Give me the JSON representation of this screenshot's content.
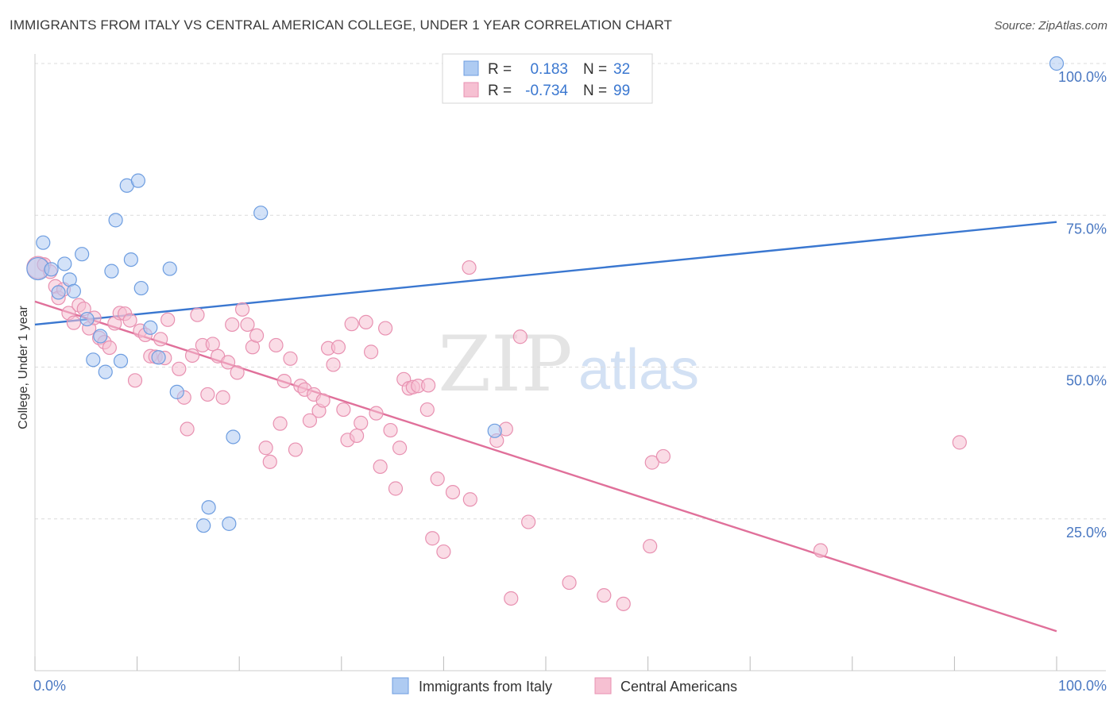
{
  "title": "IMMIGRANTS FROM ITALY VS CENTRAL AMERICAN COLLEGE, UNDER 1 YEAR CORRELATION CHART",
  "source": "Source: ZipAtlas.com",
  "watermark": {
    "zip": "ZIP",
    "atlas": "atlas"
  },
  "colors": {
    "blue_fill": "#aecbf2",
    "blue_stroke": "#6d9de0",
    "blue_line": "#3a77d0",
    "pink_fill": "#f6c0d2",
    "pink_stroke": "#e891b1",
    "pink_line": "#e0709a",
    "tick_text": "#4a78c2",
    "grid": "#dcdcdc"
  },
  "legend": {
    "rows": [
      {
        "r_label": "R =",
        "r_value": "0.183",
        "n_label": "N =",
        "n_value": "32"
      },
      {
        "r_label": "R =",
        "r_value": "-0.734",
        "n_label": "N =",
        "n_value": "99"
      }
    ]
  },
  "chart_data": {
    "type": "scatter",
    "title": "IMMIGRANTS FROM ITALY VS CENTRAL AMERICAN COLLEGE, UNDER 1 YEAR CORRELATION CHART",
    "xlabel": "",
    "ylabel": "College, Under 1 year",
    "xlim": [
      0,
      100
    ],
    "ylim": [
      0,
      102
    ],
    "x_tick_labels": [
      "0.0%",
      "100.0%"
    ],
    "y_tick_values": [
      25,
      50,
      75,
      100
    ],
    "y_tick_labels": [
      "25.0%",
      "50.0%",
      "75.0%",
      "100.0%"
    ],
    "grid": true,
    "legend_position": "bottom-center",
    "series": [
      {
        "name": "Immigrants from Italy",
        "color": "#aecbf2",
        "trend": {
          "x": [
            0,
            100
          ],
          "y": [
            57.0,
            73.9
          ]
        },
        "points": [
          {
            "x": 0.3,
            "y": 66.2,
            "r": 14
          },
          {
            "x": 0.8,
            "y": 70.5
          },
          {
            "x": 1.6,
            "y": 66.1
          },
          {
            "x": 2.3,
            "y": 62.3
          },
          {
            "x": 2.9,
            "y": 67.0
          },
          {
            "x": 3.4,
            "y": 64.4
          },
          {
            "x": 3.8,
            "y": 62.5
          },
          {
            "x": 4.6,
            "y": 68.6
          },
          {
            "x": 5.1,
            "y": 57.9
          },
          {
            "x": 5.7,
            "y": 51.2
          },
          {
            "x": 6.4,
            "y": 55.1
          },
          {
            "x": 6.9,
            "y": 49.2
          },
          {
            "x": 7.5,
            "y": 65.8
          },
          {
            "x": 7.9,
            "y": 74.2
          },
          {
            "x": 8.4,
            "y": 51.0
          },
          {
            "x": 9.0,
            "y": 79.9
          },
          {
            "x": 9.4,
            "y": 67.7
          },
          {
            "x": 10.1,
            "y": 80.7
          },
          {
            "x": 10.4,
            "y": 63.0
          },
          {
            "x": 11.3,
            "y": 56.5
          },
          {
            "x": 12.1,
            "y": 51.6
          },
          {
            "x": 13.2,
            "y": 66.2
          },
          {
            "x": 13.9,
            "y": 45.9
          },
          {
            "x": 16.5,
            "y": 23.9
          },
          {
            "x": 17.0,
            "y": 26.9
          },
          {
            "x": 19.0,
            "y": 24.2
          },
          {
            "x": 19.4,
            "y": 38.5
          },
          {
            "x": 22.1,
            "y": 75.4
          },
          {
            "x": 45.0,
            "y": 39.5
          },
          {
            "x": 100.0,
            "y": 100.0
          }
        ]
      },
      {
        "name": "Central Americans",
        "color": "#f6c0d2",
        "trend": {
          "x": [
            0,
            100
          ],
          "y": [
            60.8,
            6.5
          ]
        },
        "points": [
          {
            "x": 0.3,
            "y": 66.4,
            "r": 14
          },
          {
            "x": 0.9,
            "y": 66.9
          },
          {
            "x": 1.5,
            "y": 65.7
          },
          {
            "x": 2.0,
            "y": 63.3
          },
          {
            "x": 2.3,
            "y": 61.4
          },
          {
            "x": 2.8,
            "y": 62.8
          },
          {
            "x": 3.3,
            "y": 58.9
          },
          {
            "x": 3.8,
            "y": 57.3
          },
          {
            "x": 4.3,
            "y": 60.2
          },
          {
            "x": 4.8,
            "y": 59.6
          },
          {
            "x": 5.3,
            "y": 56.4
          },
          {
            "x": 5.8,
            "y": 58.1
          },
          {
            "x": 6.3,
            "y": 54.8
          },
          {
            "x": 6.8,
            "y": 54.1
          },
          {
            "x": 7.3,
            "y": 53.2
          },
          {
            "x": 7.8,
            "y": 57.2
          },
          {
            "x": 8.3,
            "y": 58.9
          },
          {
            "x": 8.8,
            "y": 58.8
          },
          {
            "x": 9.3,
            "y": 57.7
          },
          {
            "x": 9.8,
            "y": 47.8
          },
          {
            "x": 10.3,
            "y": 56.0
          },
          {
            "x": 10.8,
            "y": 55.3
          },
          {
            "x": 11.3,
            "y": 51.8
          },
          {
            "x": 11.8,
            "y": 51.7
          },
          {
            "x": 12.3,
            "y": 54.6
          },
          {
            "x": 12.7,
            "y": 51.5
          },
          {
            "x": 13.0,
            "y": 57.8
          },
          {
            "x": 14.1,
            "y": 49.7
          },
          {
            "x": 14.6,
            "y": 45.0
          },
          {
            "x": 14.9,
            "y": 39.8
          },
          {
            "x": 15.4,
            "y": 51.9
          },
          {
            "x": 15.9,
            "y": 58.6
          },
          {
            "x": 16.4,
            "y": 53.6
          },
          {
            "x": 16.9,
            "y": 45.5
          },
          {
            "x": 17.4,
            "y": 53.8
          },
          {
            "x": 17.9,
            "y": 51.8
          },
          {
            "x": 18.4,
            "y": 45.0
          },
          {
            "x": 18.9,
            "y": 50.8
          },
          {
            "x": 19.3,
            "y": 57.0
          },
          {
            "x": 19.8,
            "y": 49.1
          },
          {
            "x": 20.3,
            "y": 59.5
          },
          {
            "x": 20.8,
            "y": 57.0
          },
          {
            "x": 21.3,
            "y": 53.3
          },
          {
            "x": 21.7,
            "y": 55.2
          },
          {
            "x": 22.6,
            "y": 36.7
          },
          {
            "x": 23.0,
            "y": 34.4
          },
          {
            "x": 23.6,
            "y": 53.6
          },
          {
            "x": 24.0,
            "y": 40.7
          },
          {
            "x": 24.4,
            "y": 47.7
          },
          {
            "x": 25.0,
            "y": 51.4
          },
          {
            "x": 25.5,
            "y": 36.4
          },
          {
            "x": 26.0,
            "y": 46.9
          },
          {
            "x": 26.4,
            "y": 46.3
          },
          {
            "x": 26.9,
            "y": 41.2
          },
          {
            "x": 27.3,
            "y": 45.5
          },
          {
            "x": 27.8,
            "y": 42.8
          },
          {
            "x": 28.2,
            "y": 44.5
          },
          {
            "x": 28.7,
            "y": 53.1
          },
          {
            "x": 29.2,
            "y": 50.4
          },
          {
            "x": 29.7,
            "y": 53.3
          },
          {
            "x": 30.2,
            "y": 43.0
          },
          {
            "x": 30.6,
            "y": 38.0
          },
          {
            "x": 31.0,
            "y": 57.1
          },
          {
            "x": 31.5,
            "y": 38.7
          },
          {
            "x": 31.9,
            "y": 40.8
          },
          {
            "x": 32.4,
            "y": 57.4
          },
          {
            "x": 32.9,
            "y": 52.5
          },
          {
            "x": 33.4,
            "y": 42.4
          },
          {
            "x": 33.8,
            "y": 33.6
          },
          {
            "x": 34.3,
            "y": 56.4
          },
          {
            "x": 34.8,
            "y": 39.6
          },
          {
            "x": 35.3,
            "y": 30.0
          },
          {
            "x": 35.7,
            "y": 36.7
          },
          {
            "x": 36.1,
            "y": 48.0
          },
          {
            "x": 36.6,
            "y": 46.5
          },
          {
            "x": 37.0,
            "y": 46.7
          },
          {
            "x": 37.5,
            "y": 46.9
          },
          {
            "x": 38.4,
            "y": 43.0
          },
          {
            "x": 38.9,
            "y": 21.8
          },
          {
            "x": 39.4,
            "y": 31.6
          },
          {
            "x": 40.0,
            "y": 19.6
          },
          {
            "x": 40.9,
            "y": 29.4
          },
          {
            "x": 42.6,
            "y": 28.2
          },
          {
            "x": 45.2,
            "y": 37.9
          },
          {
            "x": 46.1,
            "y": 39.8
          },
          {
            "x": 46.6,
            "y": 11.9
          },
          {
            "x": 47.5,
            "y": 55.0
          },
          {
            "x": 48.3,
            "y": 24.5
          },
          {
            "x": 52.3,
            "y": 14.5
          },
          {
            "x": 55.7,
            "y": 12.4
          },
          {
            "x": 57.6,
            "y": 11.0
          },
          {
            "x": 60.2,
            "y": 20.5
          },
          {
            "x": 60.4,
            "y": 34.3
          },
          {
            "x": 61.5,
            "y": 35.3
          },
          {
            "x": 76.9,
            "y": 19.8
          },
          {
            "x": 90.5,
            "y": 37.6
          },
          {
            "x": 42.5,
            "y": 66.4
          },
          {
            "x": 38.5,
            "y": 47.0
          }
        ]
      }
    ]
  }
}
